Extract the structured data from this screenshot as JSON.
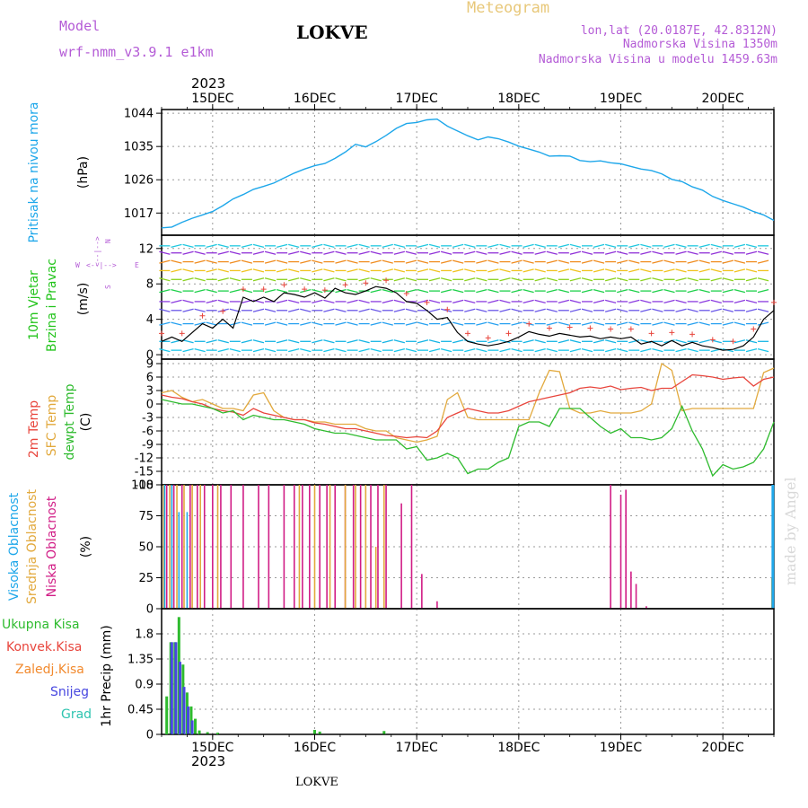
{
  "header": {
    "model_label": "Model",
    "model_name": "wrf-nmm_v3.9.1  e1km",
    "station": "LOKVE",
    "title": "Meteogram",
    "lonlat": "lon,lat (20.0187E, 42.8312N)",
    "altitude": "Nadmorska Visina 1350m",
    "model_altitude": "Nadmorska Visina u modelu 1459.63m",
    "year_top": "2023",
    "year_bottom": "2023",
    "footer_station": "LOKVE",
    "watermark": "made by Angel"
  },
  "colors": {
    "pressure": "#1ea7ea",
    "temp2m": "#e8453c",
    "sfc": "#e2a93d",
    "dewpt": "#2ebb2e",
    "high_cloud": "#1ea7ea",
    "mid_cloud": "#e2a93d",
    "low_cloud": "#d11d86",
    "wind_label": "#23c41c",
    "model_text": "#b45bd6",
    "title_text": "#e8c87a",
    "precip_total": "#2ebb2e",
    "precip_conv": "#e8453c",
    "precip_frozen": "#f28a2e",
    "precip_snow": "#4848e0",
    "precip_graupel": "#2ec4b0"
  },
  "chart_data": {
    "type": "line",
    "time_axis": {
      "unit": "days from 00 UTC 15DEC2023",
      "range": [
        -0.5,
        5.5
      ],
      "tick_labels": [
        "15DEC",
        "16DEC",
        "17DEC",
        "18DEC",
        "19DEC",
        "20DEC"
      ],
      "tick_positions": [
        0,
        1,
        2,
        3,
        4,
        5
      ]
    },
    "panels": [
      {
        "name": "pressure",
        "ylabel_lines": [
          "Pritisak na nivou mora",
          "(hPa)"
        ],
        "ylim": [
          1011,
          1045
        ],
        "yticks": [
          1017,
          1026,
          1035,
          1044
        ],
        "series": [
          {
            "x": [
              -0.5,
              -0.4,
              -0.3,
              -0.2,
              -0.1,
              0,
              0.1,
              0.2,
              0.3,
              0.4,
              0.5,
              0.6,
              0.7,
              0.8,
              0.9,
              1.0,
              1.1,
              1.2,
              1.3,
              1.4,
              1.5,
              1.6,
              1.7,
              1.8,
              1.9,
              2.0,
              2.1,
              2.2,
              2.3,
              2.4,
              2.5,
              2.6,
              2.7,
              2.8,
              2.9,
              3.0,
              3.1,
              3.2,
              3.3,
              3.4,
              3.5,
              3.6,
              3.7,
              3.8,
              3.9,
              4.0,
              4.1,
              4.2,
              4.3,
              4.4,
              4.5,
              4.6,
              4.7,
              4.8,
              4.9,
              5.0,
              5.1,
              5.2,
              5.3,
              5.4,
              5.5
            ],
            "values": [
              1013,
              1013.2,
              1014.5,
              1015.6,
              1016.5,
              1017.4,
              1019,
              1020.8,
              1022,
              1023.4,
              1024.2,
              1025.1,
              1026.5,
              1027.8,
              1028.9,
              1029.8,
              1030.4,
              1031.8,
              1033.5,
              1035.6,
              1034.9,
              1036.3,
              1038,
              1039.9,
              1041.2,
              1041.5,
              1042.2,
              1042.4,
              1040.5,
              1039.2,
              1037.9,
              1036.8,
              1037.6,
              1037.1,
              1036.2,
              1035.1,
              1034.3,
              1033.5,
              1032.4,
              1032.5,
              1032.4,
              1031.2,
              1030.9,
              1031.1,
              1030.6,
              1030.3,
              1029.6,
              1028.9,
              1028.5,
              1027.6,
              1026.1,
              1025.5,
              1024.1,
              1023.2,
              1021.5,
              1020.4,
              1019.5,
              1018.6,
              1017.4,
              1016.5,
              1015
            ]
          }
        ]
      },
      {
        "name": "wind",
        "ylabel_lines": [
          "10m Vjetar",
          "Brzina i Pravac",
          "(m/s)"
        ],
        "compass": [
          "N",
          "S",
          "W",
          "E"
        ],
        "ylim": [
          -0.5,
          13.5
        ],
        "yticks": [
          0,
          4,
          8,
          12
        ],
        "series": [
          {
            "name": "speed",
            "x": [
              -0.5,
              -0.4,
              -0.3,
              -0.2,
              -0.1,
              0,
              0.1,
              0.2,
              0.3,
              0.4,
              0.5,
              0.6,
              0.7,
              0.8,
              0.9,
              1.0,
              1.1,
              1.2,
              1.3,
              1.4,
              1.5,
              1.6,
              1.7,
              1.8,
              1.9,
              2.0,
              2.1,
              2.2,
              2.3,
              2.4,
              2.5,
              2.6,
              2.7,
              2.8,
              2.9,
              3.0,
              3.1,
              3.2,
              3.3,
              3.4,
              3.5,
              3.6,
              3.7,
              3.8,
              3.9,
              4.0,
              4.1,
              4.2,
              4.3,
              4.4,
              4.5,
              4.6,
              4.7,
              4.8,
              4.9,
              5.0,
              5.1,
              5.2,
              5.3,
              5.4,
              5.5
            ],
            "values": [
              1.5,
              2,
              1.5,
              2.5,
              3.5,
              3,
              4,
              3,
              6.5,
              6,
              6.5,
              6,
              7,
              6.8,
              6.5,
              7,
              6.4,
              7.5,
              7,
              6.8,
              7.2,
              7.7,
              7.5,
              7,
              6,
              5.8,
              5,
              4,
              4.2,
              2.5,
              1.5,
              1.2,
              1,
              1.2,
              1.5,
              2,
              2.6,
              2.3,
              2.1,
              2.4,
              2.2,
              2,
              2.1,
              1.8,
              2,
              1.8,
              2,
              1.2,
              1.5,
              1,
              1.6,
              1,
              1.4,
              1,
              0.8,
              0.5,
              0.6,
              1,
              2,
              4,
              5
            ]
          }
        ]
      },
      {
        "name": "temperature",
        "ylabel_lines": [
          "2m Temp",
          "SFC Temp",
          "dewpt Temp",
          "(C)"
        ],
        "ylim": [
          -18,
          10
        ],
        "yticks": [
          -18,
          -15,
          -12,
          -9,
          -6,
          -3,
          0,
          3,
          6,
          9
        ],
        "series": [
          {
            "name": "2m Temp",
            "x": [
              -0.5,
              -0.4,
              -0.3,
              -0.2,
              -0.1,
              0,
              0.1,
              0.2,
              0.3,
              0.4,
              0.5,
              0.6,
              0.7,
              0.8,
              0.9,
              1.0,
              1.1,
              1.2,
              1.3,
              1.4,
              1.5,
              1.6,
              1.7,
              1.8,
              1.9,
              2.0,
              2.1,
              2.2,
              2.3,
              2.4,
              2.5,
              2.6,
              2.7,
              2.8,
              2.9,
              3.0,
              3.1,
              3.2,
              3.3,
              3.4,
              3.5,
              3.6,
              3.7,
              3.8,
              3.9,
              4.0,
              4.1,
              4.2,
              4.3,
              4.4,
              4.5,
              4.6,
              4.7,
              4.8,
              4.9,
              5.0,
              5.1,
              5.2,
              5.3,
              5.4,
              5.5
            ],
            "values": [
              2,
              1.5,
              1.2,
              0.5,
              0,
              -1,
              -1.5,
              -1.8,
              -2.5,
              -1,
              -2,
              -2.5,
              -3,
              -3.5,
              -3.5,
              -4.2,
              -4.5,
              -5,
              -5.5,
              -5.5,
              -6,
              -6.5,
              -7,
              -7.2,
              -7.5,
              -7.3,
              -7.5,
              -6,
              -3,
              -2,
              -1,
              -1.5,
              -2,
              -2,
              -1.5,
              -0.5,
              0.5,
              1,
              1.5,
              2,
              2.5,
              3.5,
              3.8,
              3.5,
              4,
              3.2,
              3.5,
              3.7,
              3,
              3.5,
              3.5,
              5,
              6.5,
              6.3,
              6,
              5.5,
              5.8,
              6,
              4,
              5.5,
              6
            ]
          },
          {
            "name": "SFC Temp",
            "x": [
              -0.5,
              -0.4,
              -0.3,
              -0.2,
              -0.1,
              0,
              0.1,
              0.2,
              0.3,
              0.4,
              0.5,
              0.6,
              0.7,
              0.8,
              0.9,
              1.0,
              1.1,
              1.2,
              1.3,
              1.4,
              1.5,
              1.6,
              1.7,
              1.8,
              1.9,
              2.0,
              2.1,
              2.2,
              2.3,
              2.4,
              2.5,
              2.6,
              2.7,
              2.8,
              2.9,
              3.0,
              3.1,
              3.2,
              3.3,
              3.4,
              3.5,
              3.6,
              3.7,
              3.8,
              3.9,
              4.0,
              4.1,
              4.2,
              4.3,
              4.4,
              4.5,
              4.6,
              4.7,
              4.8,
              4.9,
              5.0,
              5.1,
              5.2,
              5.3,
              5.4,
              5.5
            ],
            "values": [
              2.5,
              3,
              1.5,
              0.5,
              1,
              0,
              -1,
              -1,
              -1.5,
              2,
              2.5,
              -1.5,
              -3,
              -3.5,
              -3.5,
              -4,
              -4,
              -4.5,
              -4.5,
              -4.5,
              -5.5,
              -6,
              -6,
              -7.5,
              -8,
              -8.5,
              -8,
              -7.2,
              1,
              2.5,
              -3,
              -3.5,
              -3.5,
              -3.5,
              -3.5,
              -3.5,
              -3.5,
              2.5,
              7.5,
              7.2,
              -1,
              -2,
              -2,
              -1.5,
              -2,
              -2,
              -2,
              -1.5,
              0,
              9,
              7.5,
              -1.5,
              -1,
              -1,
              -1,
              -1,
              -1,
              -1,
              -1,
              7,
              8
            ]
          },
          {
            "name": "dewpt Temp",
            "x": [
              -0.5,
              -0.4,
              -0.3,
              -0.2,
              -0.1,
              0,
              0.1,
              0.2,
              0.3,
              0.4,
              0.5,
              0.6,
              0.7,
              0.8,
              0.9,
              1.0,
              1.1,
              1.2,
              1.3,
              1.4,
              1.5,
              1.6,
              1.7,
              1.8,
              1.9,
              2.0,
              2.1,
              2.2,
              2.3,
              2.4,
              2.5,
              2.6,
              2.7,
              2.8,
              2.9,
              3.0,
              3.1,
              3.2,
              3.3,
              3.4,
              3.5,
              3.6,
              3.7,
              3.8,
              3.9,
              4.0,
              4.1,
              4.2,
              4.3,
              4.4,
              4.5,
              4.6,
              4.7,
              4.8,
              4.9,
              5.0,
              5.1,
              5.2,
              5.3,
              5.4,
              5.5
            ],
            "values": [
              1,
              0.5,
              0,
              0,
              -0.5,
              -1,
              -2,
              -1.5,
              -3.5,
              -2.5,
              -3,
              -3.5,
              -3.5,
              -4,
              -4.5,
              -5.5,
              -6,
              -6.5,
              -6.5,
              -7,
              -7.5,
              -8,
              -8,
              -8,
              -10,
              -9.5,
              -12.5,
              -12,
              -11,
              -12,
              -15.5,
              -14.5,
              -14.5,
              -13,
              -12,
              -5,
              -4,
              -4,
              -5,
              -1,
              -1,
              -1,
              -3,
              -5,
              -6.5,
              -5.5,
              -7.5,
              -7.5,
              -8,
              -7.5,
              -5.5,
              -0.5,
              -6,
              -10,
              -16,
              -13.5,
              -14.5,
              -14,
              -13,
              -10,
              -4
            ]
          }
        ]
      },
      {
        "name": "cloud",
        "ylabel_lines": [
          "Visoka Oblacnost",
          "Srednja Oblacnost",
          "Niska Oblacnost",
          "(%)"
        ],
        "ylim": [
          0,
          100
        ],
        "yticks": [
          0,
          25,
          50,
          75,
          100
        ],
        "series": [
          {
            "name": "Niska Oblacnost",
            "x": [
              -0.45,
              -0.38,
              -0.3,
              -0.22,
              -0.15,
              -0.08,
              0.0,
              0.08,
              0.18,
              0.3,
              0.45,
              0.55,
              0.7,
              0.8,
              0.88,
              0.95,
              1.05,
              1.12,
              1.2,
              1.3,
              1.38,
              1.45,
              1.55,
              1.62,
              1.7,
              1.85,
              1.95,
              2.05,
              2.2,
              3.9,
              4.0,
              4.05,
              4.1,
              4.15,
              4.25
            ],
            "values": [
              100,
              100,
              100,
              100,
              100,
              100,
              100,
              100,
              100,
              100,
              100,
              100,
              100,
              100,
              100,
              100,
              100,
              100,
              100,
              100,
              100,
              100,
              100,
              100,
              100,
              85,
              100,
              28,
              6,
              100,
              92,
              96,
              30,
              20,
              2
            ]
          },
          {
            "name": "Srednja Oblacnost",
            "x": [
              -0.48,
              -0.42,
              -0.35,
              -0.28,
              -0.2,
              -0.12,
              0.05,
              0.85,
              1.0,
              1.15,
              1.3,
              1.4,
              1.5,
              1.6,
              1.68,
              5.48
            ],
            "values": [
              100,
              100,
              100,
              100,
              100,
              100,
              100,
              100,
              100,
              100,
              100,
              100,
              100,
              50,
              100,
              25
            ]
          },
          {
            "name": "Visoka Oblacnost",
            "x": [
              -0.47,
              -0.4,
              -0.33,
              -0.25,
              5.49
            ],
            "values": [
              100,
              100,
              78,
              78,
              100
            ]
          }
        ]
      },
      {
        "name": "precipitation",
        "ylabel_lines": [
          "1hr Precip (mm)"
        ],
        "legend": [
          "Ukupna Kisa",
          "Konvek.Kisa",
          "Zaledj.Kisa",
          "Snijeg",
          "Grad"
        ],
        "ylim": [
          0,
          2.25
        ],
        "yticks": [
          0,
          0.45,
          0.9,
          1.35,
          1.8
        ],
        "series": [
          {
            "name": "Ukupna Kisa",
            "x": [
              -0.45,
              -0.41,
              -0.37,
              -0.33,
              -0.29,
              -0.25,
              -0.21,
              -0.17,
              -0.13,
              -0.05,
              0.05,
              1.0,
              1.05,
              1.68
            ],
            "values": [
              0.68,
              1.65,
              1.65,
              2.1,
              1.25,
              0.75,
              0.5,
              0.28,
              0.07,
              0.04,
              0.03,
              0.08,
              0.05,
              0.06
            ]
          },
          {
            "name": "Snijeg",
            "x": [
              -0.4,
              -0.36,
              -0.32,
              -0.28,
              -0.24,
              -0.2
            ],
            "values": [
              1.65,
              1.65,
              1.3,
              0.85,
              0.5,
              0.25
            ]
          }
        ]
      }
    ]
  }
}
